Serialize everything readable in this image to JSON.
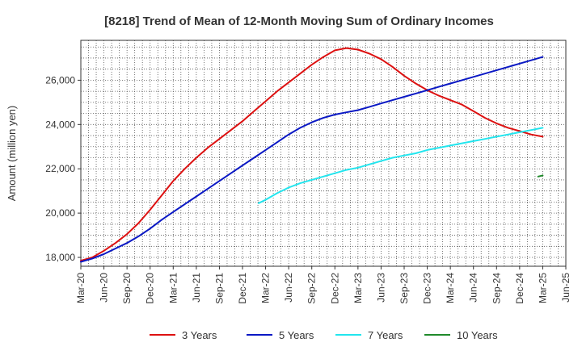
{
  "chart_data": {
    "type": "line",
    "title": "[8218]  Trend of Mean of 12-Month Moving Sum of Ordinary Incomes",
    "xlabel": "",
    "ylabel": "Amount (million yen)",
    "ylim": [
      17600,
      27800
    ],
    "yticks": [
      18000,
      20000,
      22000,
      24000,
      26000
    ],
    "ytick_labels": [
      "18,000",
      "20,000",
      "22,000",
      "24,000",
      "26,000"
    ],
    "xlim": [
      0,
      21
    ],
    "x_tick_labels": [
      "Mar-20",
      "Jun-20",
      "Sep-20",
      "Dec-20",
      "Mar-21",
      "Jun-21",
      "Sep-21",
      "Dec-21",
      "Mar-22",
      "Jun-22",
      "Sep-22",
      "Dec-22",
      "Mar-23",
      "Jun-23",
      "Sep-23",
      "Dec-23",
      "Mar-24",
      "Jun-24",
      "Sep-24",
      "Dec-24",
      "Mar-25",
      "Jun-25"
    ],
    "grid": true,
    "legend_position": "bottom",
    "series": [
      {
        "name": "3 Years",
        "color": "#dd1111",
        "x": [
          0,
          0.5,
          1,
          1.5,
          2,
          2.5,
          3,
          3.5,
          4,
          4.5,
          5,
          5.5,
          6,
          6.5,
          7,
          7.5,
          8,
          8.5,
          9,
          9.5,
          10,
          10.5,
          11,
          11.5,
          12,
          12.5,
          13,
          13.5,
          14,
          14.5,
          15,
          15.5,
          16,
          16.5,
          17,
          17.5,
          18,
          18.5,
          19,
          19.5,
          20
        ],
        "values": [
          17850,
          18000,
          18300,
          18650,
          19050,
          19550,
          20150,
          20800,
          21450,
          22000,
          22500,
          22950,
          23350,
          23750,
          24150,
          24600,
          25050,
          25500,
          25900,
          26300,
          26700,
          27050,
          27350,
          27450,
          27380,
          27200,
          26950,
          26600,
          26200,
          25850,
          25550,
          25300,
          25100,
          24900,
          24600,
          24300,
          24050,
          23850,
          23700,
          23550,
          23450
        ]
      },
      {
        "name": "5 Years",
        "color": "#0a18c4",
        "x": [
          0,
          0.5,
          1,
          1.5,
          2,
          2.5,
          3,
          3.5,
          4,
          4.5,
          5,
          5.5,
          6,
          6.5,
          7,
          7.5,
          8,
          8.5,
          9,
          9.5,
          10,
          10.5,
          11,
          11.5,
          12,
          12.5,
          13,
          13.5,
          14,
          14.5,
          15,
          15.5,
          16,
          16.5,
          17,
          17.5,
          18,
          18.5,
          19,
          19.5,
          20
        ],
        "values": [
          17800,
          17950,
          18150,
          18400,
          18650,
          18950,
          19300,
          19700,
          20050,
          20400,
          20750,
          21100,
          21450,
          21800,
          22150,
          22500,
          22850,
          23200,
          23550,
          23850,
          24100,
          24300,
          24450,
          24550,
          24650,
          24800,
          24950,
          25100,
          25250,
          25400,
          25550,
          25700,
          25850,
          26000,
          26150,
          26300,
          26450,
          26600,
          26750,
          26900,
          27050
        ]
      },
      {
        "name": "7 Years",
        "color": "#22e5ee",
        "x": [
          7.7,
          8,
          8.5,
          9,
          9.5,
          10,
          10.5,
          11,
          11.5,
          12,
          12.5,
          13,
          13.5,
          14,
          14.5,
          15,
          15.5,
          16,
          16.5,
          17,
          17.5,
          18,
          18.5,
          19,
          19.5,
          20
        ],
        "values": [
          20450,
          20600,
          20900,
          21150,
          21350,
          21500,
          21650,
          21800,
          21950,
          22050,
          22200,
          22350,
          22500,
          22600,
          22700,
          22850,
          22950,
          23050,
          23150,
          23250,
          23350,
          23450,
          23550,
          23650,
          23750,
          23850
        ]
      },
      {
        "name": "10 Years",
        "color": "#1f8a2b",
        "x": [
          19.8,
          20
        ],
        "values": [
          21650,
          21700
        ]
      }
    ]
  }
}
